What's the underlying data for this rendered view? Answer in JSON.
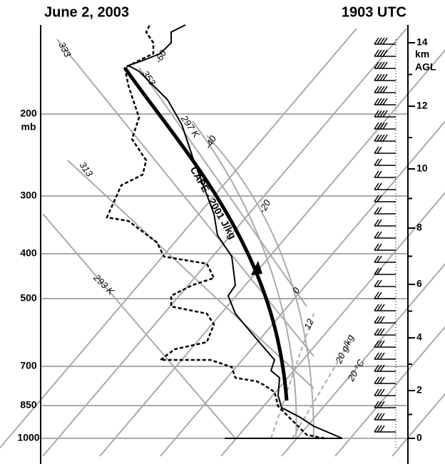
{
  "header": {
    "title": "June 2, 2003",
    "time": "1903 UTC"
  },
  "pressure_axis": {
    "labels": [
      "200",
      "300",
      "400",
      "500",
      "700",
      "850",
      "1000"
    ],
    "unit": "mb"
  },
  "height_axis": {
    "labels": [
      "14",
      "12",
      "10",
      "8",
      "6",
      "4",
      "2",
      "0"
    ],
    "unit": [
      "km",
      "AGL"
    ]
  },
  "annotations": {
    "cape": "CAPE - 2001 J/kg",
    "isotherms": [
      "-60",
      "-40",
      "-20",
      "0",
      "20 °C"
    ],
    "adiabats": [
      "333",
      "353",
      "297 K",
      "313",
      "293 K"
    ],
    "mixing_ratios": [
      "12",
      "20 g/kg"
    ]
  }
}
